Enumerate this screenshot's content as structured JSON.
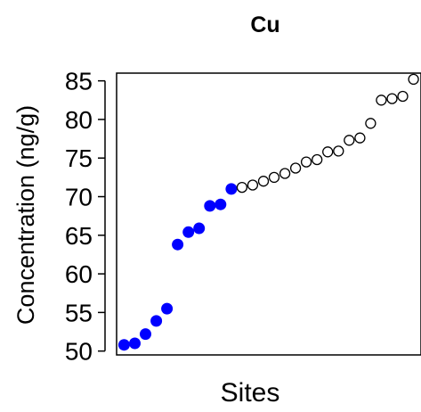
{
  "chart_data": {
    "type": "scatter",
    "title": "Cu",
    "xlabel": "Sites",
    "ylabel": "Concentration (ng/g)",
    "ylim": [
      49.5,
      86
    ],
    "xlim": [
      0.3,
      28.7
    ],
    "yticks": [
      50,
      55,
      60,
      65,
      70,
      75,
      80,
      85
    ],
    "grid": false,
    "legend": "none",
    "colors": {
      "filled": "#0000ff",
      "open": "#000000"
    },
    "series": [
      {
        "marker": "filled-circle",
        "x": [
          1,
          2,
          3,
          4,
          5,
          6,
          7,
          8,
          9,
          10,
          11
        ],
        "y": [
          50.8,
          51.0,
          52.2,
          53.9,
          55.5,
          63.8,
          65.4,
          65.9,
          68.8,
          69.0,
          71.0
        ]
      },
      {
        "marker": "open-circle",
        "x": [
          12,
          13,
          14,
          15,
          16,
          17,
          18,
          19,
          20,
          21,
          22,
          23,
          24,
          25,
          26,
          27,
          28
        ],
        "y": [
          71.2,
          71.5,
          72.0,
          72.5,
          73.0,
          73.7,
          74.5,
          74.8,
          75.8,
          75.9,
          77.3,
          77.6,
          79.5,
          82.5,
          82.7,
          83.0,
          85.2
        ]
      }
    ]
  }
}
